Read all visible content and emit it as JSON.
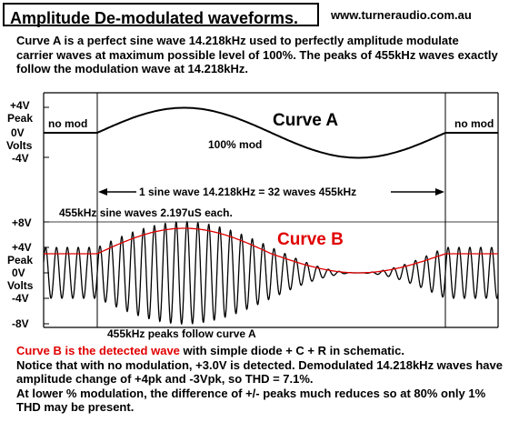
{
  "header": {
    "title": "Amplitude De-modulated  waveforms.",
    "website": "www.turneraudio.com.au"
  },
  "intro_text": "Curve A is a perfect sine wave 14.218kHz used to perfectly amplitude modulate carrier waves at maximum possible level of 100%. The peaks of 455kHz waves exactly follow the modulation wave at 14.218kHz.",
  "top_panel": {
    "axis_labels": [
      "+4V",
      "Peak",
      "0V",
      "Volts",
      "-4V"
    ],
    "no_mod_left": "no mod",
    "no_mod_right": "no mod",
    "curve_label": "Curve A",
    "mod_label": "100% mod",
    "span_label": "1 sine wave 14.218kHz = 32 waves 455kHz"
  },
  "bottom_panel": {
    "header_label": "455kHz sine waves  2.197uS each.",
    "axis_labels": [
      "+8V",
      "+4V",
      "Peak",
      "0V",
      "Volts",
      "-4V",
      "-8V"
    ],
    "curve_label": "Curve B",
    "footer_label": "455kHz peaks follow curve A"
  },
  "description": {
    "highlight": "Curve B is the detected wave",
    "line1_rest": " with simple diode + C + R in schematic.",
    "line2": "Notice that with no modulation, +3.0V is detected. Demodulated 14.218kHz waves have amplitude change of +4pk and -3Vpk, so THD = 7.1%.",
    "line3": "At lower % modulation, the difference of +/- peaks much reduces so at 80% only 1% THD may be present."
  },
  "colors": {
    "curve_b": "#e00000",
    "waveform": "#000000",
    "background": "#ffffff"
  }
}
